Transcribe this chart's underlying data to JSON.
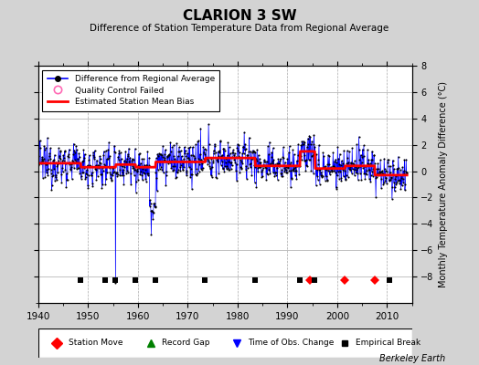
{
  "title": "CLARION 3 SW",
  "subtitle": "Difference of Station Temperature Data from Regional Average",
  "ylabel": "Monthly Temperature Anomaly Difference (°C)",
  "xlim": [
    1940,
    2015
  ],
  "ylim": [
    -10,
    8
  ],
  "yticks_right": [
    -8,
    -6,
    -4,
    -2,
    0,
    2,
    4,
    6,
    8
  ],
  "xticks": [
    1940,
    1950,
    1960,
    1970,
    1980,
    1990,
    2000,
    2010
  ],
  "background_color": "#d3d3d3",
  "plot_bg_color": "#ffffff",
  "line_color": "#0000ff",
  "bias_color": "#ff0000",
  "marker_color": "#000000",
  "watermark": "Berkeley Earth",
  "station_moves": [
    1994.5,
    2001.5,
    2007.5
  ],
  "record_gaps": [],
  "tobs_changes": [],
  "emp_breaks": [
    1948.5,
    1953.5,
    1955.5,
    1959.5,
    1963.5,
    1973.5,
    1983.5,
    1992.5,
    1995.5,
    2010.5
  ],
  "long_spike_year": 1955.5,
  "long_spike_bottom": -8.5
}
